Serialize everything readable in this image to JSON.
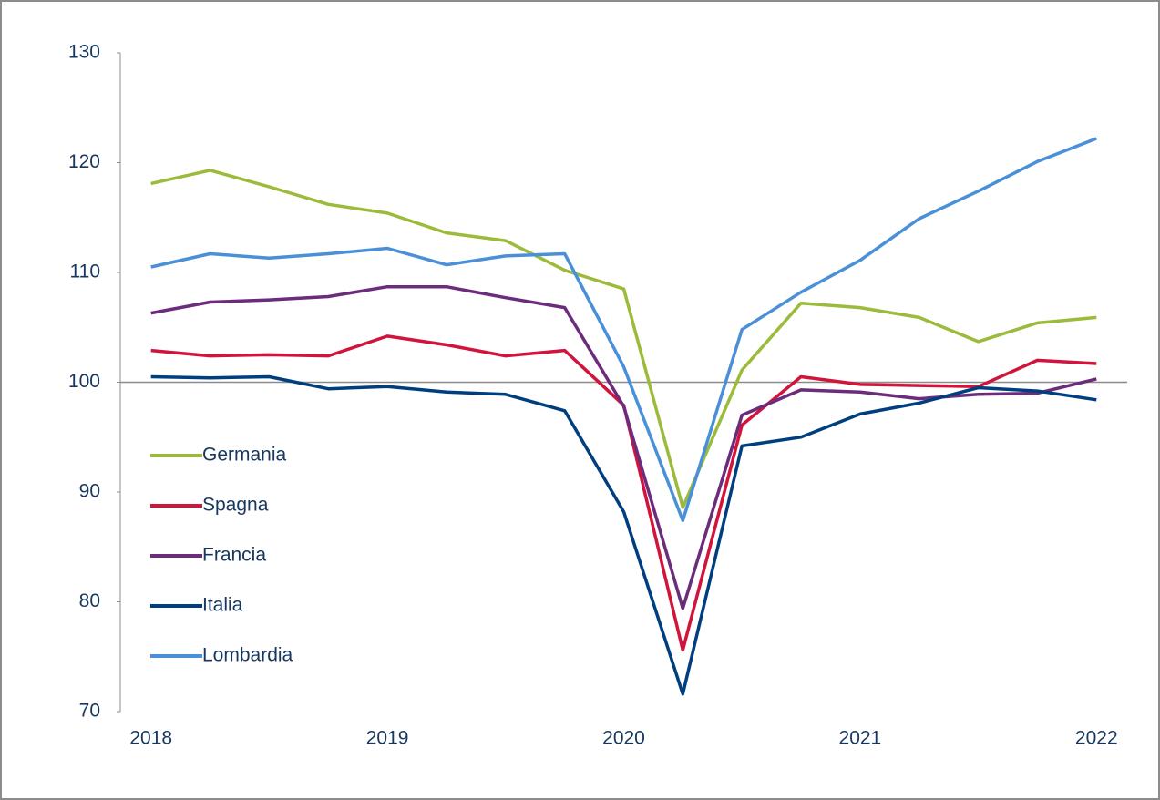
{
  "chart_data": {
    "type": "line",
    "x": [
      2018,
      2018.25,
      2018.5,
      2018.75,
      2019,
      2019.25,
      2019.5,
      2019.75,
      2020,
      2020.25,
      2020.5,
      2020.75,
      2021,
      2021.25,
      2021.5,
      2021.75,
      2022
    ],
    "series": [
      {
        "name": "Germania",
        "color": "#9bbb3a",
        "values": [
          118.1,
          119.3,
          117.8,
          116.2,
          115.4,
          113.6,
          112.9,
          110.2,
          108.5,
          88.6,
          101.1,
          107.2,
          106.8,
          105.9,
          103.7,
          105.4,
          105.9
        ]
      },
      {
        "name": "Spagna",
        "color": "#d0143c",
        "values": [
          102.9,
          102.4,
          102.5,
          102.4,
          104.2,
          103.4,
          102.4,
          102.9,
          97.9,
          75.6,
          96.1,
          100.5,
          99.8,
          99.7,
          99.6,
          102.0,
          101.7
        ]
      },
      {
        "name": "Francia",
        "color": "#6b2c7c",
        "values": [
          106.3,
          107.3,
          107.5,
          107.8,
          108.7,
          108.7,
          107.7,
          106.8,
          97.8,
          79.4,
          97.0,
          99.3,
          99.1,
          98.5,
          98.9,
          99.0,
          100.3
        ]
      },
      {
        "name": "Italia",
        "color": "#003f7f",
        "values": [
          100.5,
          100.4,
          100.5,
          99.4,
          99.6,
          99.1,
          98.9,
          97.4,
          88.2,
          71.6,
          94.2,
          95.0,
          97.1,
          98.1,
          99.5,
          99.2,
          98.4
        ]
      },
      {
        "name": "Lombardia",
        "color": "#4a90d9",
        "values": [
          110.5,
          111.7,
          111.3,
          111.7,
          112.2,
          110.7,
          111.5,
          111.7,
          101.4,
          87.4,
          104.8,
          108.2,
          111.1,
          114.9,
          117.4,
          120.1,
          122.2
        ]
      }
    ],
    "xlim": [
      2017.87,
      2022.13
    ],
    "xticks": [
      2018,
      2019,
      2020,
      2021,
      2022
    ],
    "ylim": [
      70,
      130
    ],
    "yticks": [
      70,
      80,
      90,
      100,
      110,
      120,
      130
    ],
    "reference_line": 100,
    "legend": "left"
  }
}
